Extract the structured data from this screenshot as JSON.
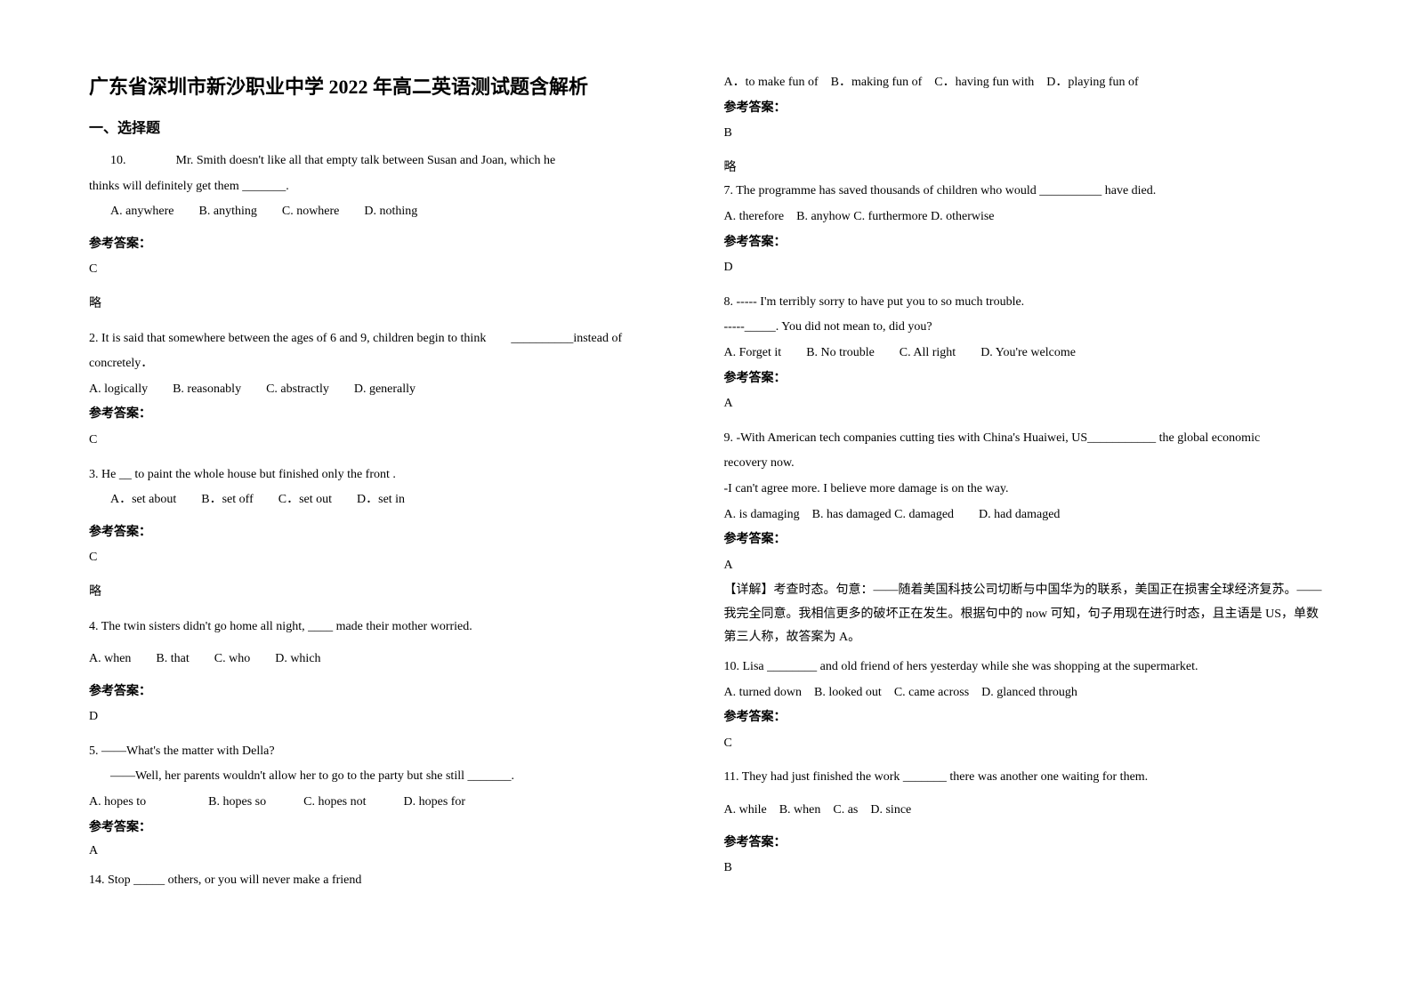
{
  "title": "广东省深圳市新沙职业中学 2022 年高二英语测试题含解析",
  "section1": "一、选择题",
  "answer_label": "参考答案：",
  "omit": "略",
  "questions": [
    {
      "num": "10.",
      "text_line1": "Mr. Smith doesn't like all that empty talk between Susan and Joan, which he",
      "text_line2": "thinks will definitely get them _______.",
      "opts": "A. anywhere　　B. anything　　C. nowhere　　D. nothing",
      "answer": "C",
      "note": "略"
    },
    {
      "num": "2.",
      "text_line1": "It is said that somewhere between the ages of 6 and 9, children begin to think　　__________instead of",
      "text_line2": "concretely．",
      "opts": "A. logically　　B. reasonably　　C. abstractly　　D. generally",
      "answer": "C"
    },
    {
      "num": "3.",
      "text_line1": "He __ to paint the whole house but finished only the front .",
      "opts": "A．set about　　B．set off　　C．set out　　D．set in",
      "answer": "C",
      "note": "略"
    },
    {
      "num": "4.",
      "text_line1": "The twin sisters didn't go home all night, ____ made their mother worried.",
      "opts": "A. when　　B. that　　C. who　　D. which",
      "answer": "D"
    },
    {
      "num": "5.",
      "text_line1": "――What's the matter with Della?",
      "text_line2": "――Well, her parents wouldn't allow her to go to the party but she still _______.",
      "opts": "A. hopes to　　　　　B. hopes so　　　C. hopes not　　　D. hopes for",
      "answer": "A"
    },
    {
      "num": "14.",
      "text_line1": "Stop _____ others, or you will never make a friend",
      "opts": "A．to make fun of　B．making fun of　C．having fun with　D．playing fun of",
      "answer": "B",
      "note": "略"
    },
    {
      "num": "7.",
      "text_line1": "The programme has saved thousands of children who would __________ have died.",
      "opts": "A. therefore　B. anyhow C. furthermore D. otherwise",
      "answer": "D"
    },
    {
      "num": "8.",
      "text_line1": "----- I'm terribly sorry to have put you to so much trouble.",
      "text_line2": "-----_____. You did not mean to, did you?",
      "opts": "A. Forget it　　B. No trouble　　C. All right　　D. You're welcome",
      "answer": "A"
    },
    {
      "num": "9.",
      "text_line1": "-With American tech companies cutting ties with China's Huaiwei, US___________ the global economic",
      "text_line2": "recovery now.",
      "text_line3": "-I can't agree more. I believe more damage is on the way.",
      "opts": "A. is damaging　B. has damaged C. damaged　　D. had damaged",
      "answer": "A",
      "explain": "【详解】考查时态。句意：——随着美国科技公司切断与中国华为的联系，美国正在损害全球经济复苏。——我完全同意。我相信更多的破坏正在发生。根据句中的 now 可知，句子用现在进行时态，且主语是 US，单数第三人称，故答案为 A。"
    },
    {
      "num": "10.",
      "text_line1": "Lisa ________ and old friend of hers yesterday while she was shopping at the supermarket.",
      "opts": "A. turned down　B. looked out　C. came across　D. glanced through",
      "answer": "C"
    },
    {
      "num": "11.",
      "text_line1": "They had just finished the work _______ there was another one waiting for them.",
      "opts": "A. while　B. when　C. as　D. since",
      "answer": "B"
    }
  ]
}
